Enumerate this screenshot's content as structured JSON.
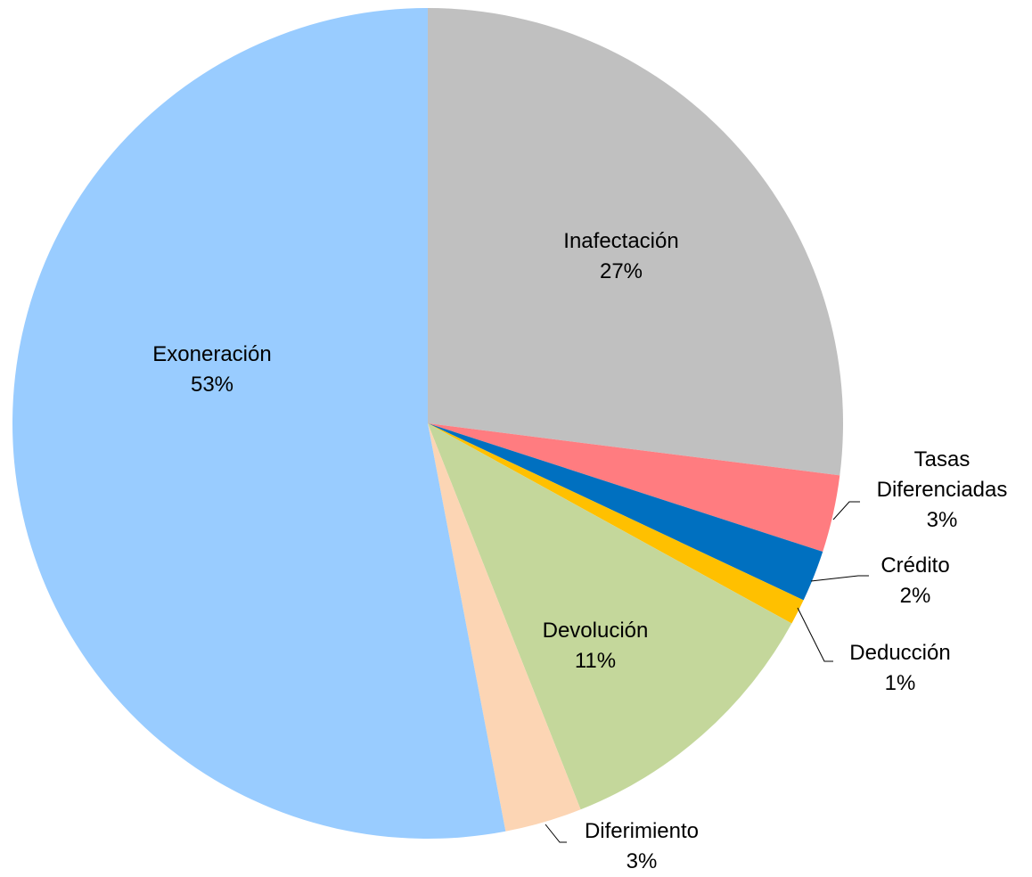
{
  "chart_data": {
    "type": "pie",
    "categories": [
      "Inafectación",
      "Tasas Diferenciadas",
      "Crédito",
      "Deducción",
      "Devolución",
      "Diferimiento",
      "Exoneración"
    ],
    "values": [
      27,
      3,
      2,
      1,
      11,
      3,
      53
    ],
    "value_labels": [
      "27%",
      "3%",
      "2%",
      "1%",
      "11%",
      "3%",
      "53%"
    ],
    "colors": [
      "#c0c0c0",
      "#ff7c80",
      "#0070c0",
      "#ffc000",
      "#c4d79b",
      "#fcd5b4",
      "#99ccff"
    ]
  }
}
